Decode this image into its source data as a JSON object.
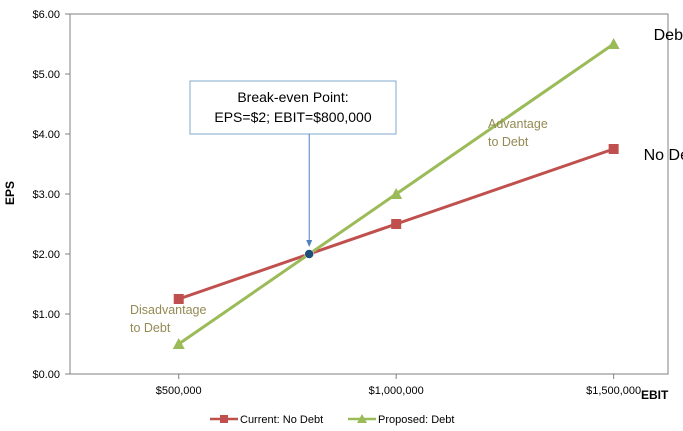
{
  "chart_data": {
    "type": "line",
    "x": [
      500000,
      1000000,
      1500000
    ],
    "x_tick_labels": [
      "$500,000",
      "$1,000,000",
      "$1,500,000"
    ],
    "xlim": [
      250000,
      1625000
    ],
    "ylim": [
      0,
      6
    ],
    "y_ticks": [
      0,
      1,
      2,
      3,
      4,
      5,
      6
    ],
    "y_tick_labels": [
      "$0.00",
      "$1.00",
      "$2.00",
      "$3.00",
      "$4.00",
      "$5.00",
      "$6.00"
    ],
    "xlabel": "EBIT",
    "ylabel": "EPS",
    "grid": false,
    "legend_position": "bottom",
    "series": [
      {
        "name": "Current: No Debt",
        "values": [
          1.25,
          2.5,
          3.75
        ],
        "color": "#c0504d",
        "marker": "square",
        "end_label": "No Debt"
      },
      {
        "name": "Proposed: Debt",
        "values": [
          0.5,
          3.0,
          5.5
        ],
        "color": "#9bbb59",
        "marker": "triangle",
        "end_label": "Debt"
      }
    ],
    "break_even": {
      "x": 800000,
      "y": 2,
      "color": "#1f4e79",
      "callout_lines": [
        "Break-even Point:",
        "EPS=$2; EBIT=$800,000"
      ],
      "arrow_color": "#4f81bd",
      "box_border_color": "#7fa9c9"
    },
    "annotations": [
      {
        "id": "advantage",
        "lines": [
          "Advantage",
          "to Debt"
        ],
        "color": "#948a54"
      },
      {
        "id": "disadvantage",
        "lines": [
          "Disadvantage",
          "to Debt"
        ],
        "color": "#948a54"
      }
    ]
  }
}
